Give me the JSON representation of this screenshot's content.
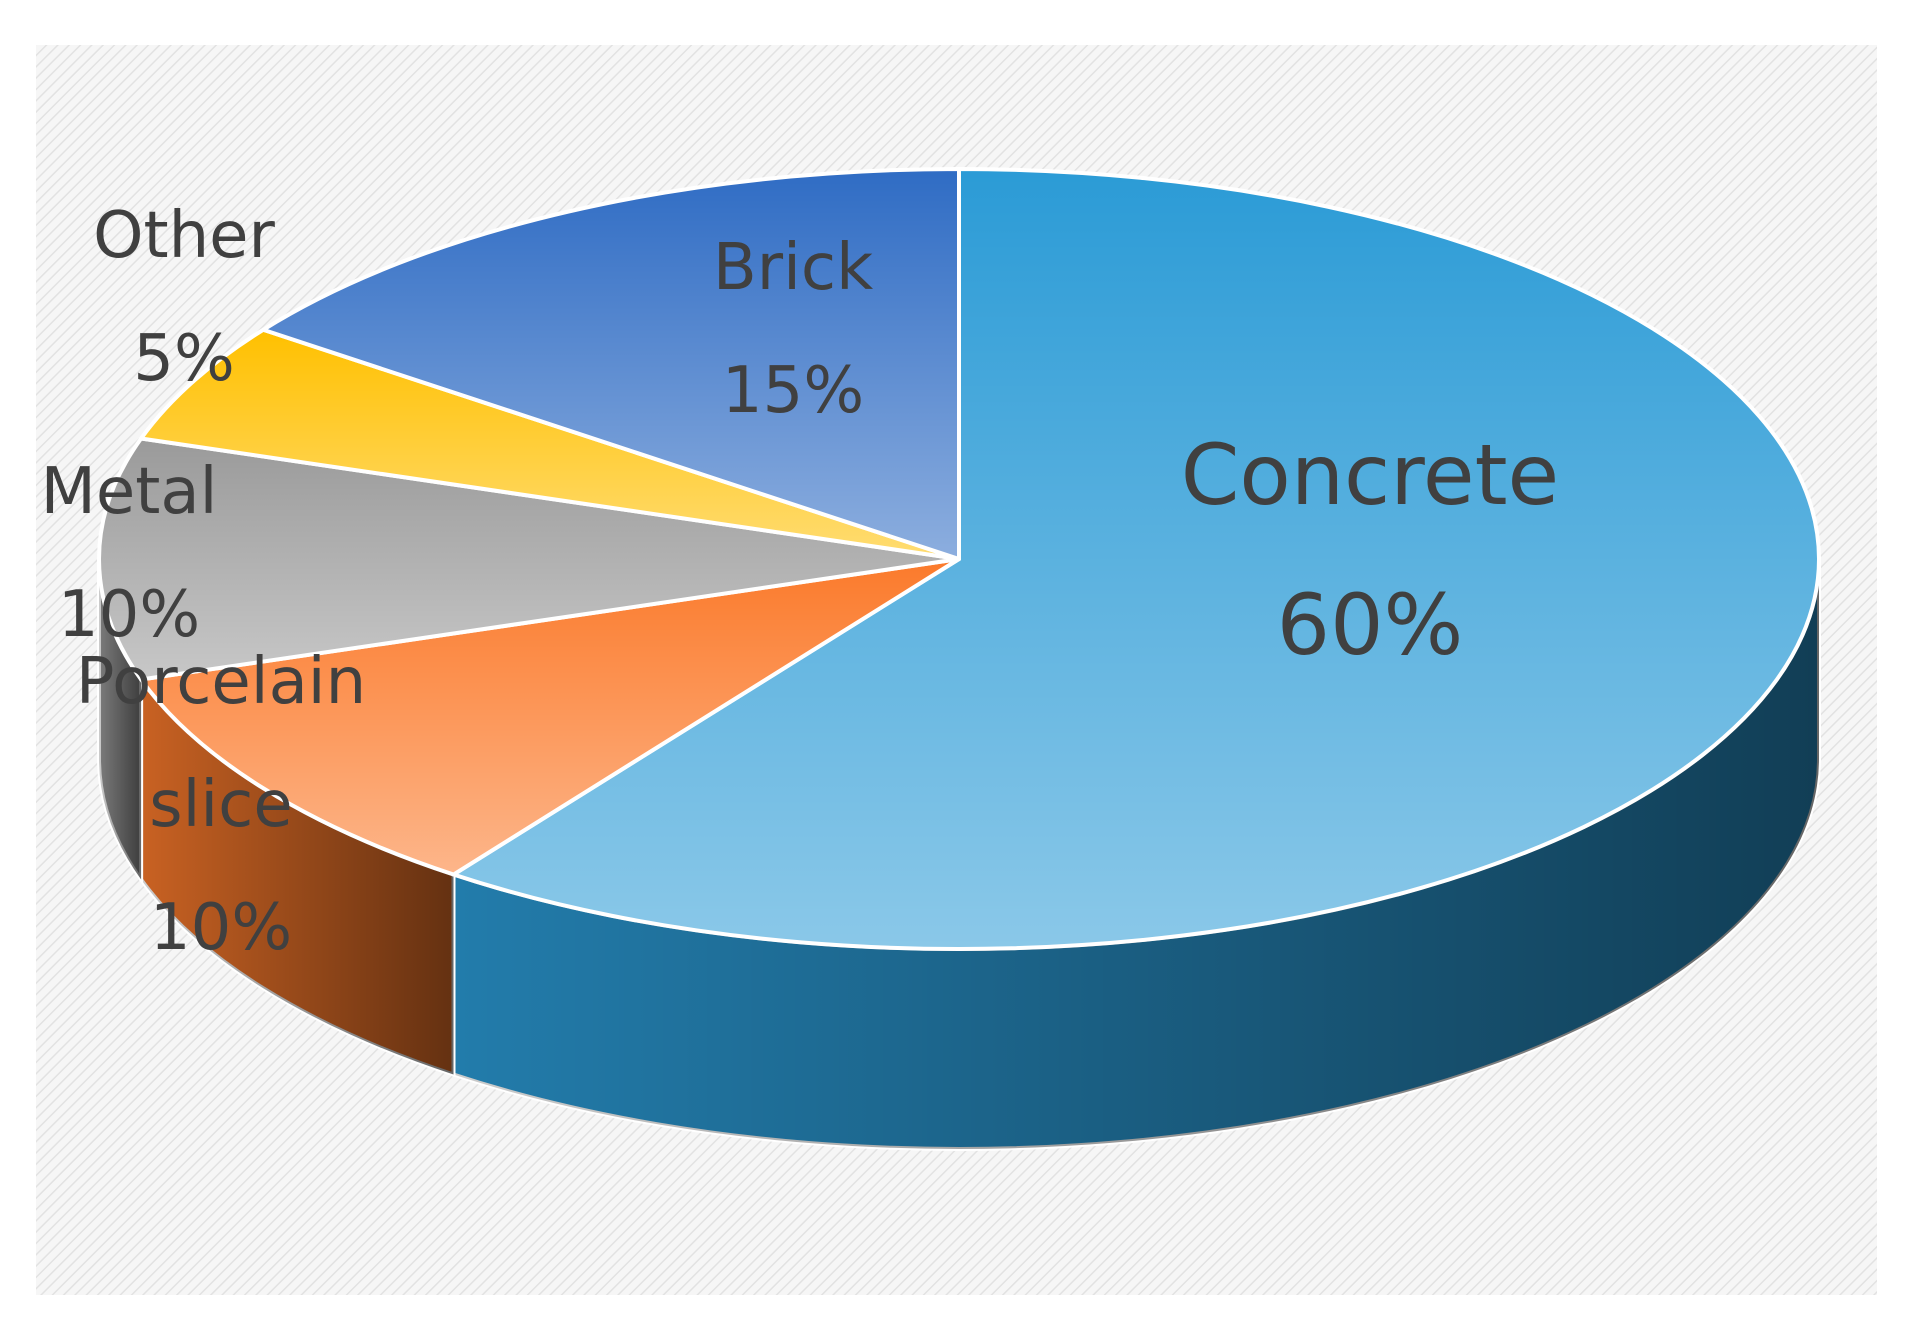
{
  "chart_data": {
    "type": "pie",
    "categories": [
      "Concrete",
      "Porcelain slice",
      "Metal",
      "Other",
      "Brick"
    ],
    "values": [
      60,
      10,
      10,
      5,
      15
    ],
    "value_labels": [
      "60%",
      "10%",
      "10%",
      "5%",
      "15%"
    ],
    "colors": [
      "#2b9bd6",
      "#fb7a2b",
      "#9a9a9a",
      "#ffc000",
      "#2f6cc4"
    ]
  }
}
